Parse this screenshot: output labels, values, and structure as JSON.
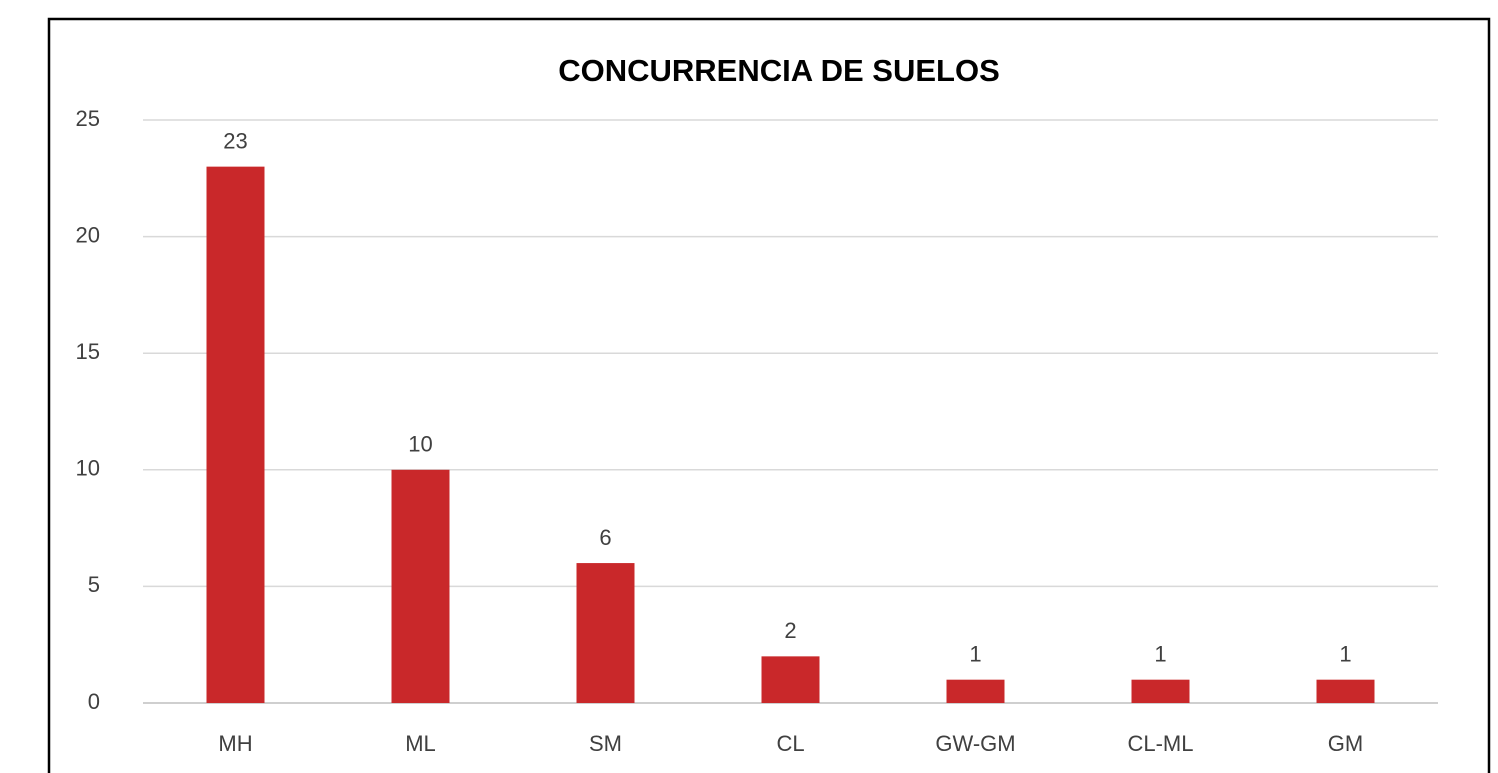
{
  "chart_data": {
    "type": "bar",
    "title": "CONCURRENCIA DE SUELOS",
    "categories": [
      "MH",
      "ML",
      "SM",
      "CL",
      "GW-GM",
      "CL-ML",
      "GM"
    ],
    "values": [
      23,
      10,
      6,
      2,
      1,
      1,
      1
    ],
    "color": "#c9282a",
    "ylim": [
      0,
      25
    ],
    "yticks": [
      0,
      5,
      10,
      15,
      20,
      25
    ],
    "grid": true
  }
}
